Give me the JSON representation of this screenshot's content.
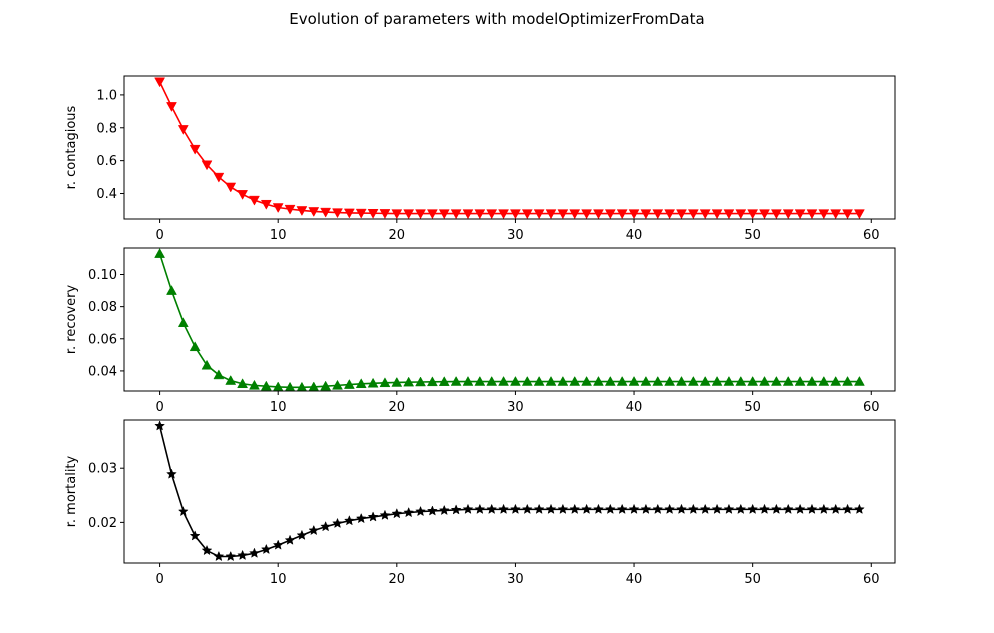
{
  "figure": {
    "title": "Evolution of parameters with modelOptimizerFromData"
  },
  "chart_data": [
    {
      "type": "line",
      "ylabel": "r. contagious",
      "color": "#ff0000",
      "marker": "triangle-down",
      "xlim": [
        -3,
        62
      ],
      "ylim": [
        0.245,
        1.115
      ],
      "xticks": [
        0,
        10,
        20,
        30,
        40,
        50,
        60
      ],
      "yticks": [
        0.4,
        0.6,
        0.8,
        1.0
      ],
      "ytick_labels": [
        "0.4",
        "0.6",
        "0.8",
        "1.0"
      ],
      "x": [
        0,
        1,
        2,
        3,
        4,
        5,
        6,
        7,
        8,
        9,
        10,
        11,
        12,
        13,
        14,
        15,
        16,
        17,
        18,
        19,
        20,
        21,
        22,
        23,
        24,
        25,
        26,
        27,
        28,
        29,
        30,
        31,
        32,
        33,
        34,
        35,
        36,
        37,
        38,
        39,
        40,
        41,
        42,
        43,
        44,
        45,
        46,
        47,
        48,
        49,
        50,
        51,
        52,
        53,
        54,
        55,
        56,
        57,
        58,
        59
      ],
      "values": [
        1.08,
        0.93,
        0.79,
        0.67,
        0.575,
        0.5,
        0.44,
        0.395,
        0.36,
        0.335,
        0.315,
        0.305,
        0.297,
        0.291,
        0.287,
        0.284,
        0.282,
        0.281,
        0.28,
        0.279,
        0.278,
        0.278,
        0.278,
        0.278,
        0.278,
        0.278,
        0.278,
        0.278,
        0.278,
        0.278,
        0.278,
        0.278,
        0.278,
        0.278,
        0.278,
        0.278,
        0.278,
        0.278,
        0.278,
        0.278,
        0.278,
        0.278,
        0.278,
        0.278,
        0.278,
        0.278,
        0.278,
        0.278,
        0.278,
        0.278,
        0.278,
        0.278,
        0.278,
        0.278,
        0.278,
        0.278,
        0.278,
        0.278,
        0.278,
        0.278
      ]
    },
    {
      "type": "line",
      "ylabel": "r. recovery",
      "color": "#008000",
      "marker": "triangle-up",
      "xlim": [
        -3,
        62
      ],
      "ylim": [
        0.0275,
        0.1165
      ],
      "xticks": [
        0,
        10,
        20,
        30,
        40,
        50,
        60
      ],
      "yticks": [
        0.04,
        0.06,
        0.08,
        0.1
      ],
      "ytick_labels": [
        "0.04",
        "0.06",
        "0.08",
        "0.10"
      ],
      "x": [
        0,
        1,
        2,
        3,
        4,
        5,
        6,
        7,
        8,
        9,
        10,
        11,
        12,
        13,
        14,
        15,
        16,
        17,
        18,
        19,
        20,
        21,
        22,
        23,
        24,
        25,
        26,
        27,
        28,
        29,
        30,
        31,
        32,
        33,
        34,
        35,
        36,
        37,
        38,
        39,
        40,
        41,
        42,
        43,
        44,
        45,
        46,
        47,
        48,
        49,
        50,
        51,
        52,
        53,
        54,
        55,
        56,
        57,
        58,
        59
      ],
      "values": [
        0.113,
        0.09,
        0.07,
        0.055,
        0.0435,
        0.0375,
        0.034,
        0.032,
        0.031,
        0.0305,
        0.03,
        0.0298,
        0.0298,
        0.03,
        0.0305,
        0.031,
        0.0315,
        0.032,
        0.0323,
        0.0326,
        0.0328,
        0.033,
        0.0331,
        0.0332,
        0.0333,
        0.0334,
        0.0334,
        0.0334,
        0.0334,
        0.0334,
        0.0334,
        0.0334,
        0.0334,
        0.0334,
        0.0334,
        0.0334,
        0.0334,
        0.0334,
        0.0334,
        0.0334,
        0.0334,
        0.0334,
        0.0334,
        0.0334,
        0.0334,
        0.0334,
        0.0334,
        0.0334,
        0.0334,
        0.0334,
        0.0334,
        0.0334,
        0.0334,
        0.0334,
        0.0334,
        0.0334,
        0.0334,
        0.0334,
        0.0334,
        0.0334
      ]
    },
    {
      "type": "line",
      "ylabel": "r. mortality",
      "color": "#000000",
      "marker": "star",
      "xlim": [
        -3,
        62
      ],
      "ylim": [
        0.0125,
        0.0389
      ],
      "xticks": [
        0,
        10,
        20,
        30,
        40,
        50,
        60
      ],
      "yticks": [
        0.02,
        0.03
      ],
      "ytick_labels": [
        "0.02",
        "0.03"
      ],
      "x": [
        0,
        1,
        2,
        3,
        4,
        5,
        6,
        7,
        8,
        9,
        10,
        11,
        12,
        13,
        14,
        15,
        16,
        17,
        18,
        19,
        20,
        21,
        22,
        23,
        24,
        25,
        26,
        27,
        28,
        29,
        30,
        31,
        32,
        33,
        34,
        35,
        36,
        37,
        38,
        39,
        40,
        41,
        42,
        43,
        44,
        45,
        46,
        47,
        48,
        49,
        50,
        51,
        52,
        53,
        54,
        55,
        56,
        57,
        58,
        59
      ],
      "values": [
        0.0378,
        0.0289,
        0.022,
        0.0175,
        0.0148,
        0.0137,
        0.0137,
        0.0139,
        0.0143,
        0.015,
        0.0158,
        0.0167,
        0.0176,
        0.0185,
        0.0192,
        0.0198,
        0.0203,
        0.0207,
        0.021,
        0.0213,
        0.0216,
        0.0218,
        0.022,
        0.0221,
        0.0222,
        0.0223,
        0.0224,
        0.0224,
        0.0224,
        0.0224,
        0.0224,
        0.0224,
        0.0224,
        0.0224,
        0.0224,
        0.0224,
        0.0224,
        0.0224,
        0.0224,
        0.0224,
        0.0224,
        0.0224,
        0.0224,
        0.0224,
        0.0224,
        0.0224,
        0.0224,
        0.0224,
        0.0224,
        0.0224,
        0.0224,
        0.0224,
        0.0224,
        0.0224,
        0.0224,
        0.0224,
        0.0224,
        0.0224,
        0.0224,
        0.0224
      ]
    }
  ]
}
